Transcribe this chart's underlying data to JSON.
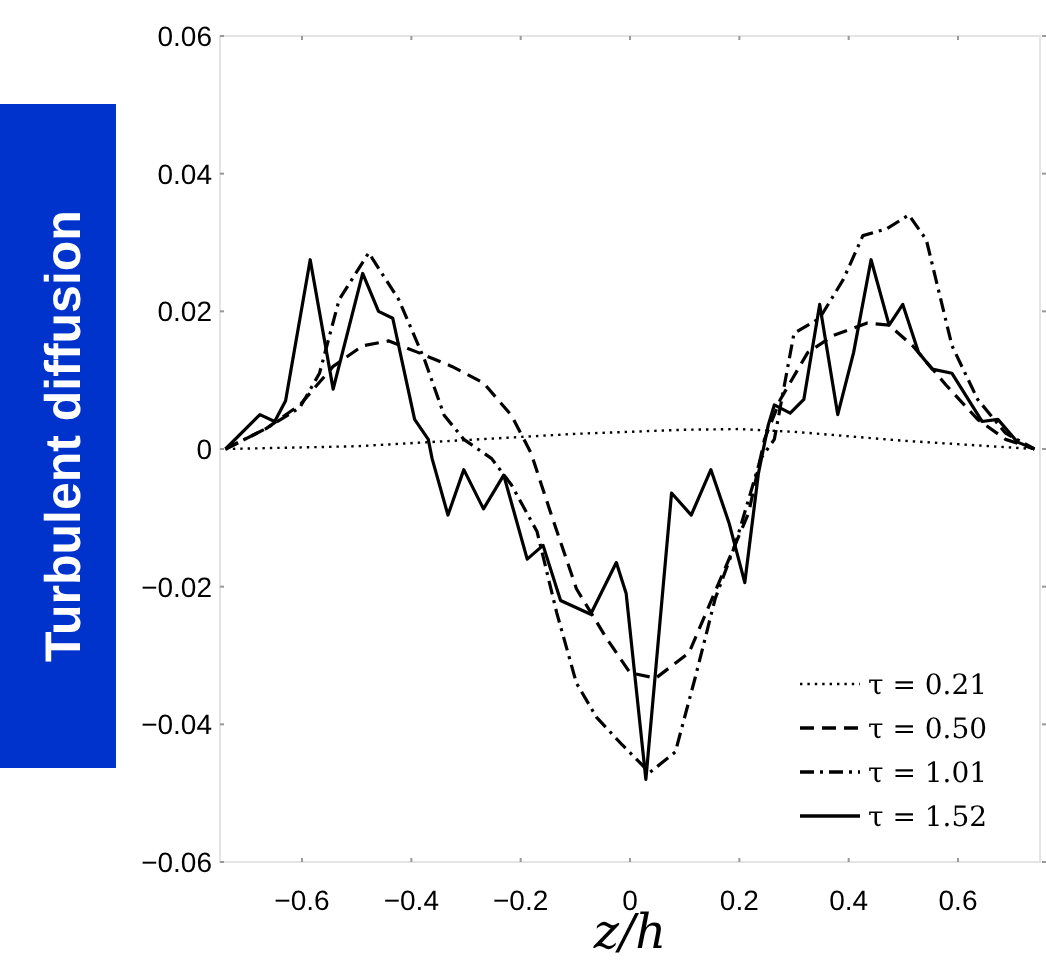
{
  "chart_data": {
    "type": "line",
    "xlabel": "z/h",
    "ylabel": "Turbulent diffusion",
    "xlim": [
      -0.75,
      0.75
    ],
    "ylim": [
      -0.06,
      0.06
    ],
    "xticks": [
      -0.6,
      -0.4,
      -0.2,
      0,
      0.2,
      0.4,
      0.6
    ],
    "yticks": [
      -0.06,
      -0.04,
      -0.02,
      0,
      0.02,
      0.04,
      0.06
    ],
    "legend": "bottom right",
    "grid": false,
    "series": [
      {
        "name": "τ = 0.21",
        "color": "#000000",
        "line_style": "dotted",
        "x": [
          -0.74,
          -0.5,
          -0.3,
          -0.1,
          0.1,
          0.2,
          0.3,
          0.5,
          0.74
        ],
        "values": [
          0,
          0.0004,
          0.0013,
          0.0022,
          0.0028,
          0.0029,
          0.0025,
          0.0012,
          0
        ]
      },
      {
        "name": "τ = 0.50",
        "color": "#000000",
        "line_style": "dashed",
        "x": [
          -0.74,
          -0.665,
          -0.604,
          -0.543,
          -0.489,
          -0.441,
          -0.387,
          -0.326,
          -0.268,
          -0.217,
          -0.181,
          -0.145,
          -0.098,
          -0.043,
          0,
          0.047,
          0.108,
          0.166,
          0.217,
          0.246,
          0.275,
          0.325,
          0.372,
          0.434,
          0.474,
          0.517,
          0.578,
          0.636,
          0.687,
          0.74
        ],
        "values": [
          0,
          0.003,
          0.0064,
          0.012,
          0.015,
          0.0157,
          0.014,
          0.012,
          0.0096,
          0.0049,
          -0.0006,
          -0.0093,
          -0.0203,
          -0.0275,
          -0.0325,
          -0.0333,
          -0.0296,
          -0.0188,
          -0.0093,
          0.0014,
          0.0072,
          0.014,
          0.0165,
          0.0183,
          0.018,
          0.015,
          0.0093,
          0.0043,
          0.0014,
          0
        ]
      },
      {
        "name": "τ = 1.01",
        "color": "#000000",
        "line_style": "dashdot",
        "x": [
          -0.74,
          -0.665,
          -0.604,
          -0.568,
          -0.532,
          -0.478,
          -0.423,
          -0.376,
          -0.34,
          -0.304,
          -0.253,
          -0.217,
          -0.17,
          -0.134,
          -0.098,
          -0.061,
          -0.014,
          0.036,
          0.083,
          0.119,
          0.156,
          0.192,
          0.239,
          0.264,
          0.3,
          0.347,
          0.39,
          0.426,
          0.47,
          0.51,
          0.542,
          0.589,
          0.636,
          0.687,
          0.74
        ],
        "values": [
          0,
          0.003,
          0.006,
          0.011,
          0.0217,
          0.0285,
          0.0217,
          0.013,
          0.0049,
          0.0014,
          -0.0014,
          -0.0052,
          -0.012,
          -0.0238,
          -0.034,
          -0.039,
          -0.043,
          -0.047,
          -0.044,
          -0.0333,
          -0.0217,
          -0.014,
          -0.0014,
          0.0014,
          0.0168,
          0.019,
          0.0246,
          0.031,
          0.032,
          0.034,
          0.0304,
          0.015,
          0.0072,
          0.0023,
          0
        ]
      },
      {
        "name": "τ = 1.52",
        "color": "#000000",
        "line_style": "solid",
        "x": [
          -0.74,
          -0.677,
          -0.65,
          -0.63,
          -0.585,
          -0.543,
          -0.489,
          -0.46,
          -0.434,
          -0.394,
          -0.369,
          -0.362,
          -0.333,
          -0.304,
          -0.268,
          -0.231,
          -0.188,
          -0.159,
          -0.127,
          -0.072,
          -0.025,
          -0.007,
          0.029,
          0.076,
          0.112,
          0.148,
          0.181,
          0.21,
          0.235,
          0.253,
          0.264,
          0.293,
          0.318,
          0.347,
          0.38,
          0.409,
          0.441,
          0.474,
          0.499,
          0.528,
          0.553,
          0.589,
          0.644,
          0.673,
          0.709,
          0.74
        ],
        "values": [
          0,
          0.005,
          0.004,
          0.007,
          0.0275,
          0.0087,
          0.0255,
          0.02,
          0.019,
          0.0043,
          0.0014,
          -0.0014,
          -0.0096,
          -0.003,
          -0.0087,
          -0.0038,
          -0.016,
          -0.014,
          -0.022,
          -0.024,
          -0.0165,
          -0.021,
          -0.048,
          -0.0064,
          -0.0096,
          -0.003,
          -0.0107,
          -0.0194,
          -0.0035,
          0.0035,
          0.0064,
          0.0052,
          0.0072,
          0.021,
          0.005,
          0.014,
          0.0275,
          0.018,
          0.021,
          0.014,
          0.0116,
          0.011,
          0.004,
          0.0043,
          0.001,
          0
        ]
      }
    ]
  }
}
